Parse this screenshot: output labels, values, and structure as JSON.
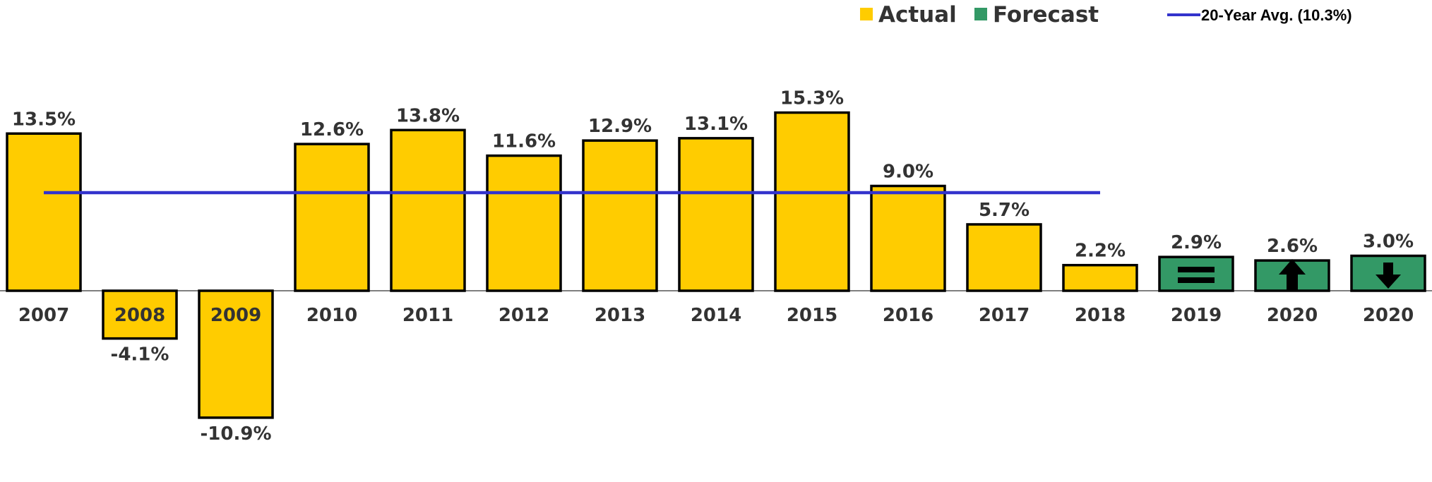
{
  "chart_data": {
    "type": "bar",
    "categories": [
      "2007",
      "2008",
      "2009",
      "2010",
      "2011",
      "2012",
      "2013",
      "2014",
      "2015",
      "2016",
      "2017",
      "2018",
      "2019",
      "2020",
      "2020"
    ],
    "values": [
      13.5,
      -4.1,
      -10.9,
      12.6,
      13.8,
      11.6,
      12.9,
      13.1,
      15.3,
      9.0,
      5.7,
      2.2,
      2.9,
      2.6,
      3.0
    ],
    "value_labels": [
      "13.5%",
      "-4.1%",
      "-10.9%",
      "12.6%",
      "13.8%",
      "11.6%",
      "12.9%",
      "13.1%",
      "15.3%",
      "9.0%",
      "5.7%",
      "2.2%",
      "2.9%",
      "2.6%",
      "3.0%"
    ],
    "bar_kind": [
      "actual",
      "actual",
      "actual",
      "actual",
      "actual",
      "actual",
      "actual",
      "actual",
      "actual",
      "actual",
      "actual",
      "actual",
      "forecast",
      "forecast",
      "forecast"
    ],
    "forecast_icons": [
      null,
      null,
      null,
      null,
      null,
      null,
      null,
      null,
      null,
      null,
      null,
      null,
      "equals-icon",
      "arrow-up-icon",
      "arrow-down-icon"
    ],
    "legend": {
      "placement": "top-right",
      "actual_label": "Actual",
      "forecast_label": "Forecast",
      "avg_label": "20-Year Avg. (10.3%)"
    },
    "average_line": {
      "value": 10.3,
      "from_category": "2007",
      "to_category": "2018"
    },
    "ylim": [
      -10.9,
      15.3
    ],
    "grid": false,
    "title": "",
    "xlabel": "",
    "ylabel": "",
    "colors": {
      "actual": "#FFCC00",
      "forecast": "#339966",
      "average_line": "#3333CC",
      "bar_border": "#000000",
      "text": "#333333"
    }
  }
}
